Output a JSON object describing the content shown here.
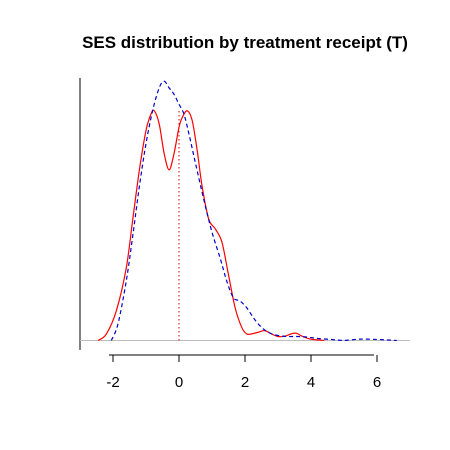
{
  "chart_data": {
    "type": "line",
    "title": "SES distribution by treatment receipt (T)",
    "xlabel": "",
    "ylabel": "",
    "xlim": [
      -3,
      7
    ],
    "ylim": [
      -0.02,
      0.8
    ],
    "x_ticks": [
      -2,
      0,
      2,
      4,
      6
    ],
    "y_ticks_labeled": false,
    "grid": false,
    "legend": "none",
    "baseline_y": 0,
    "reference_line": {
      "x": 0,
      "color": "#cc0000",
      "style": "dotted"
    },
    "series": [
      {
        "color": "#ff0000",
        "style": "solid",
        "x": [
          -2.45,
          -2.2,
          -1.9,
          -1.6,
          -1.4,
          -1.2,
          -1.0,
          -0.85,
          -0.75,
          -0.6,
          -0.45,
          -0.3,
          -0.15,
          0.0,
          0.1,
          0.25,
          0.4,
          0.55,
          0.7,
          0.9,
          1.1,
          1.3,
          1.5,
          1.7,
          1.9,
          2.05,
          2.2,
          2.4,
          2.6,
          2.8,
          3.0,
          3.2,
          3.4,
          3.55,
          3.75,
          3.95,
          4.15,
          4.4
        ],
        "y": [
          0.0,
          0.02,
          0.09,
          0.22,
          0.37,
          0.52,
          0.64,
          0.69,
          0.7,
          0.66,
          0.57,
          0.52,
          0.57,
          0.65,
          0.68,
          0.7,
          0.67,
          0.58,
          0.47,
          0.37,
          0.34,
          0.3,
          0.2,
          0.1,
          0.04,
          0.02,
          0.02,
          0.025,
          0.03,
          0.02,
          0.012,
          0.013,
          0.02,
          0.022,
          0.012,
          0.005,
          0.002,
          0.0
        ]
      },
      {
        "color": "#0000cc",
        "style": "dashed",
        "x": [
          -2.05,
          -1.85,
          -1.6,
          -1.4,
          -1.2,
          -1.0,
          -0.8,
          -0.6,
          -0.45,
          -0.3,
          -0.15,
          0.0,
          0.15,
          0.3,
          0.5,
          0.75,
          1.0,
          1.25,
          1.45,
          1.65,
          1.85,
          2.05,
          2.25,
          2.45,
          2.7,
          3.0,
          3.3,
          3.6,
          3.9,
          4.2,
          4.6,
          5.0,
          5.5,
          6.0,
          6.4,
          6.6
        ],
        "y": [
          0.0,
          0.05,
          0.18,
          0.32,
          0.47,
          0.6,
          0.7,
          0.77,
          0.79,
          0.77,
          0.75,
          0.72,
          0.69,
          0.63,
          0.54,
          0.43,
          0.33,
          0.25,
          0.18,
          0.13,
          0.12,
          0.1,
          0.07,
          0.045,
          0.025,
          0.015,
          0.012,
          0.012,
          0.01,
          0.006,
          0.003,
          0.0,
          0.004,
          0.003,
          0.001,
          0.0
        ]
      }
    ]
  }
}
